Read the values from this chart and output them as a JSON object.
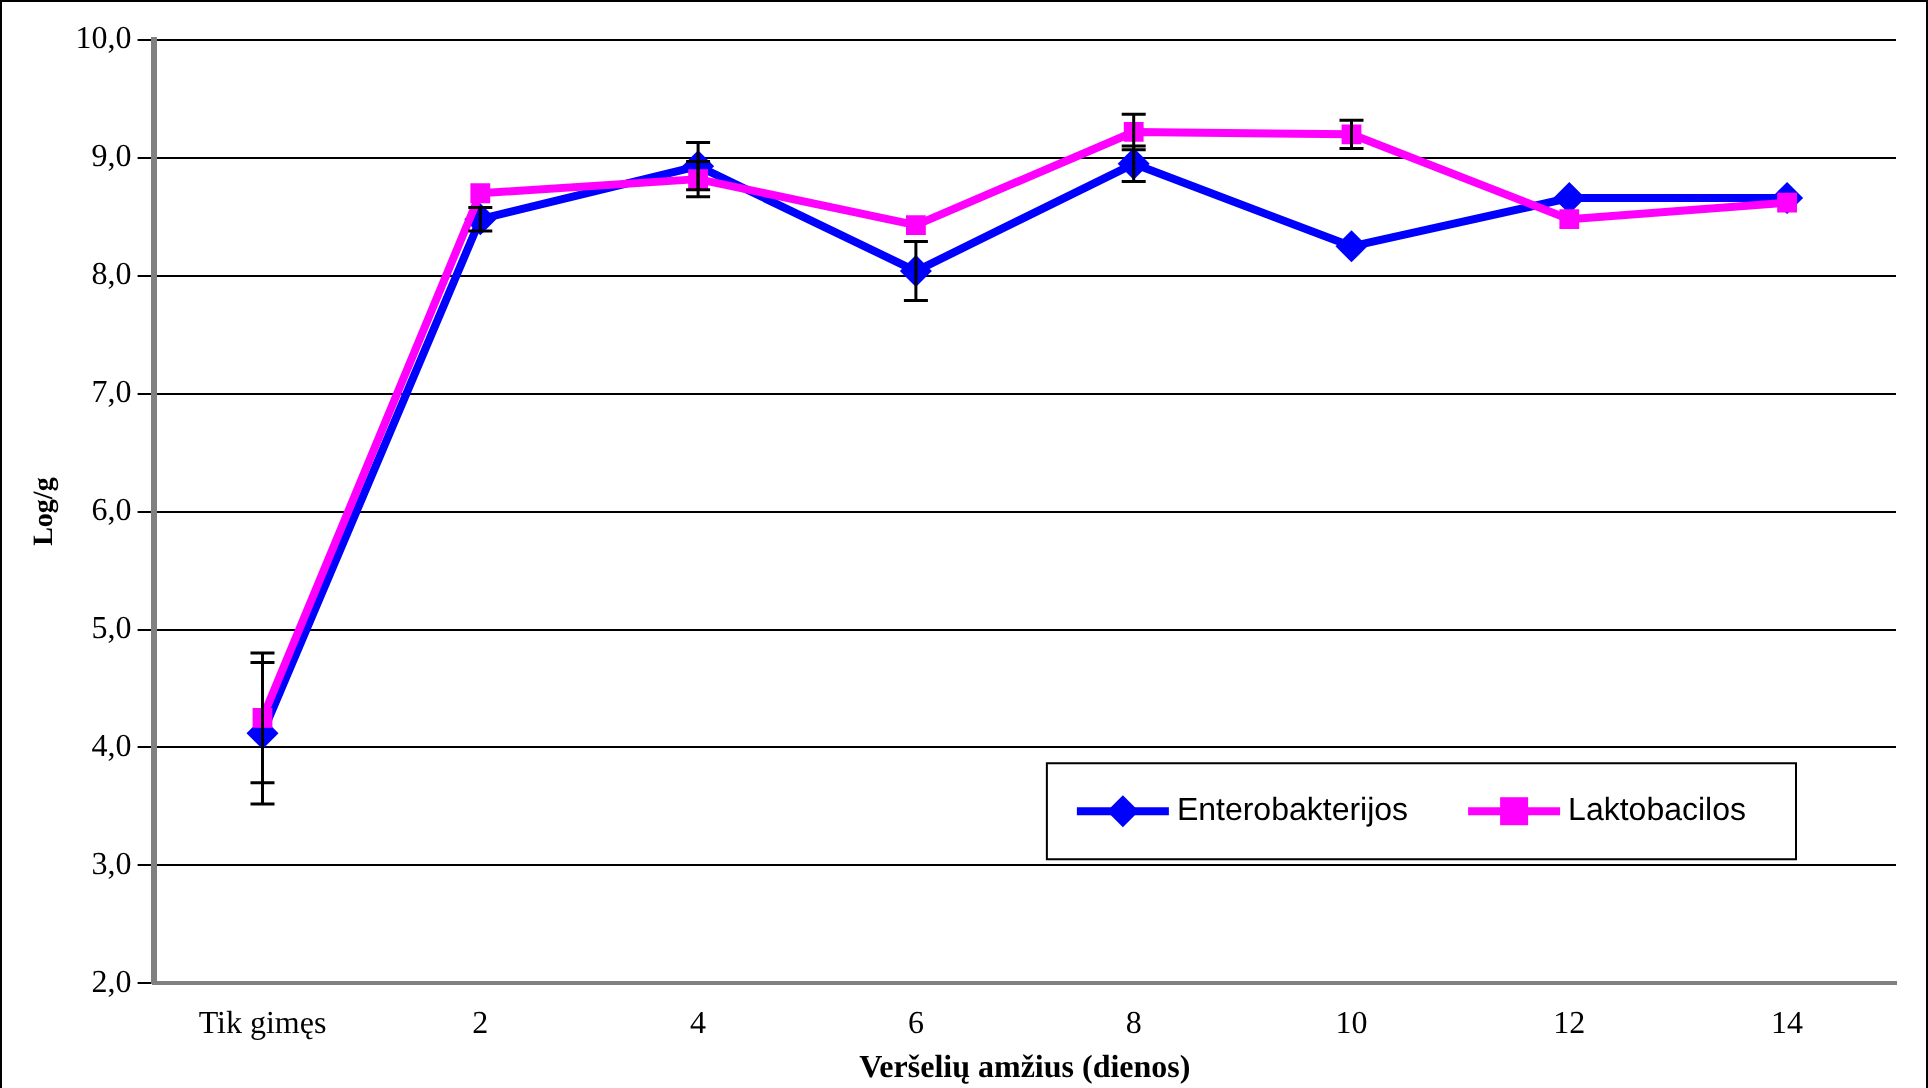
{
  "chart_data": {
    "type": "line",
    "xlabel": "Veršelių amžius (dienos)",
    "ylabel": "Log/g",
    "categories": [
      "Tik gimęs",
      "2",
      "4",
      "6",
      "8",
      "10",
      "12",
      "14"
    ],
    "series": [
      {
        "name": "Enterobakterijos",
        "color": "#0000ff",
        "marker": "diamond",
        "values": [
          4.12,
          8.48,
          8.93,
          8.04,
          8.95,
          8.25,
          8.66,
          8.66
        ],
        "errors": [
          0.6,
          0.1,
          0.2,
          0.25,
          0.15,
          null,
          null,
          null
        ]
      },
      {
        "name": "Laktobacilos",
        "color": "#ff00ff",
        "marker": "square",
        "values": [
          4.25,
          8.7,
          8.82,
          8.43,
          9.22,
          9.2,
          8.48,
          8.62
        ],
        "errors": [
          0.55,
          null,
          0.15,
          null,
          0.15,
          0.12,
          null,
          null
        ]
      }
    ],
    "ylim": [
      2,
      10
    ],
    "yticks": [
      {
        "value": 2,
        "label": "2,0"
      },
      {
        "value": 3,
        "label": "3,0"
      },
      {
        "value": 4,
        "label": "4,0"
      },
      {
        "value": 5,
        "label": "5,0"
      },
      {
        "value": 6,
        "label": "6,0"
      },
      {
        "value": 7,
        "label": "7,0"
      },
      {
        "value": 8,
        "label": "8,0"
      },
      {
        "value": 9,
        "label": "9,0"
      },
      {
        "value": 10,
        "label": "10,0"
      }
    ],
    "grid": "y",
    "legend": "bottom right",
    "line_style": "solid"
  }
}
